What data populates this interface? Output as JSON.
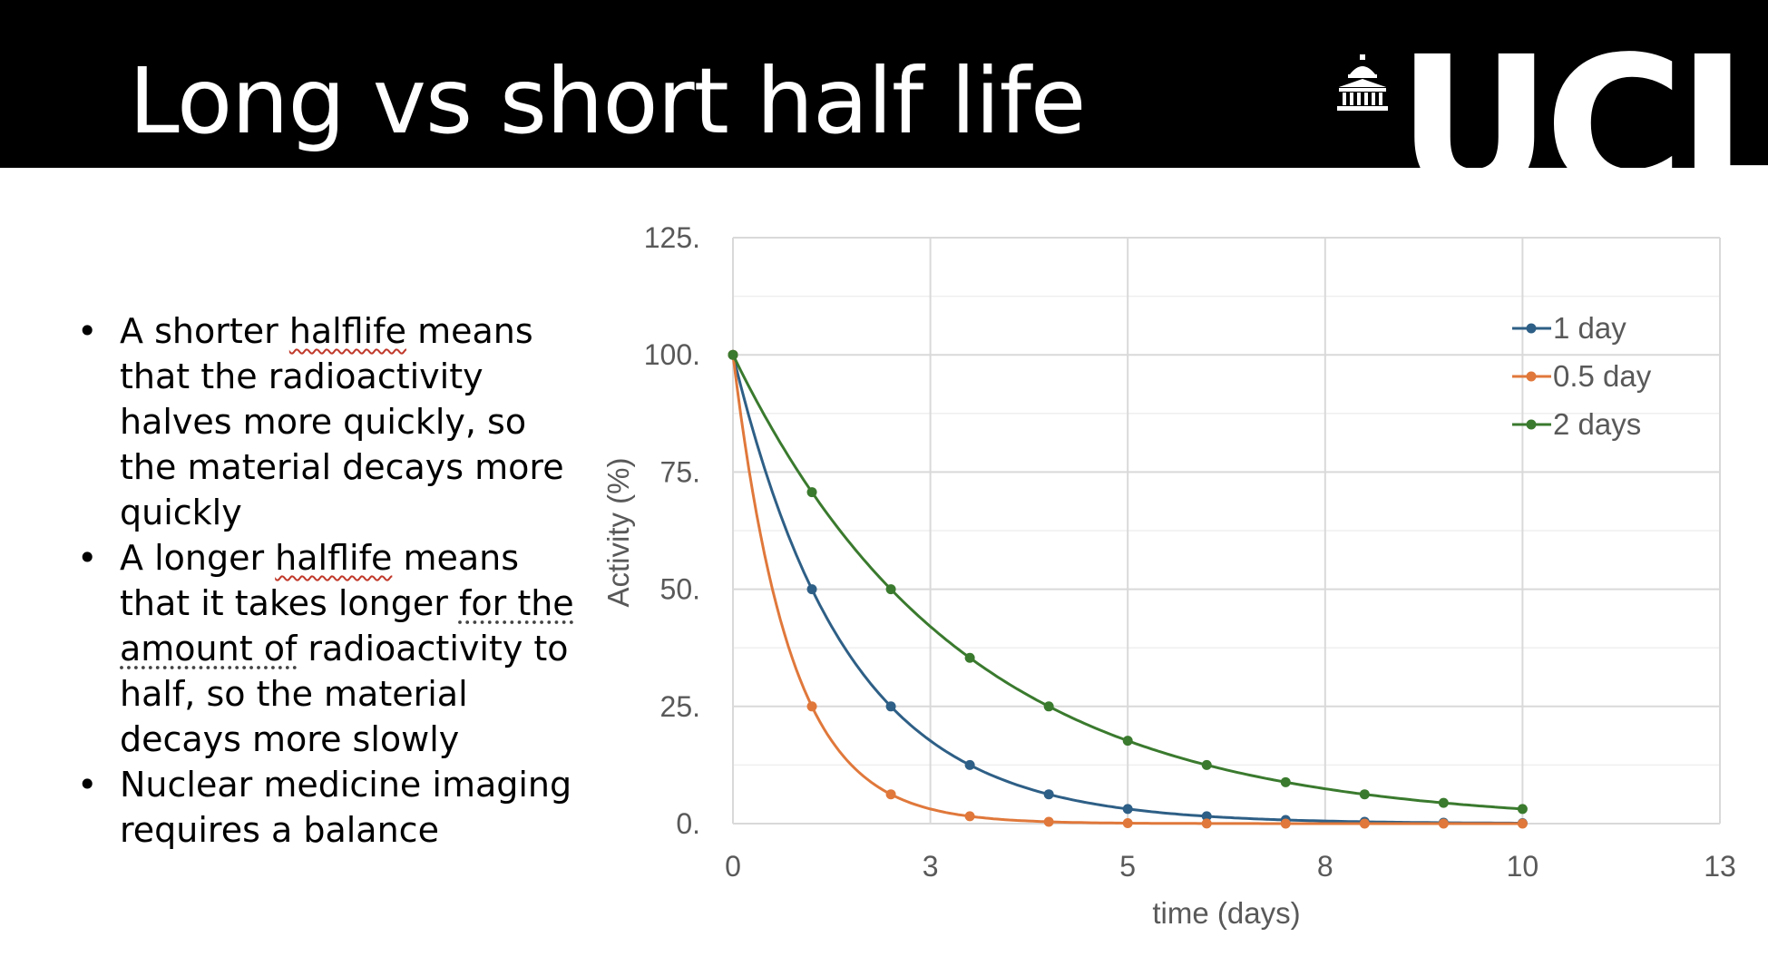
{
  "slide": {
    "title": "Long vs short half life",
    "logo_text": "UCL",
    "logo_icon": "portico-building-icon"
  },
  "bullets": [
    {
      "parts": [
        {
          "t": "A shorter "
        },
        {
          "t": "halflife",
          "squig": true
        },
        {
          "t": " means that the radioactivity halves more quickly, so the material decays more quickly"
        }
      ]
    },
    {
      "parts": [
        {
          "t": "A longer "
        },
        {
          "t": "halflife",
          "squig": true
        },
        {
          "t": " means that it takes longer "
        },
        {
          "t": "for the amount of",
          "dotted": true
        },
        {
          "t": " radioactivity to half, so the material decays more slowly"
        }
      ]
    },
    {
      "parts": [
        {
          "t": "Nuclear medicine imaging requires a balance"
        }
      ]
    }
  ],
  "chart_data": {
    "type": "line",
    "title": "",
    "xlabel": "time (days)",
    "ylabel": "Activity (%)",
    "xlim": [
      0,
      12.5
    ],
    "ylim": [
      0,
      125
    ],
    "x_ticks": [
      0,
      2.5,
      5,
      7.5,
      10,
      12.5
    ],
    "x_tick_labels": [
      "0",
      "3",
      "5",
      "8",
      "10",
      "13"
    ],
    "y_ticks": [
      0,
      25,
      50,
      75,
      100,
      125
    ],
    "y_tick_labels": [
      "0.",
      "25.",
      "50.",
      "75.",
      "100.",
      "125."
    ],
    "grid": true,
    "legend_position": "top-right",
    "x": [
      0,
      1,
      2,
      3,
      4,
      5,
      6,
      7,
      8,
      9,
      10
    ],
    "series": [
      {
        "name": "1 day",
        "color": "#2e5f86",
        "half_life": 1,
        "values": [
          100,
          50,
          25,
          12.5,
          6.25,
          3.125,
          1.563,
          0.781,
          0.391,
          0.195,
          0.098
        ]
      },
      {
        "name": "0.5 day",
        "color": "#e0783b",
        "half_life": 0.5,
        "values": [
          100,
          25,
          6.25,
          1.563,
          0.391,
          0.098,
          0.024,
          0.006,
          0.002,
          0.0004,
          0.0001
        ]
      },
      {
        "name": "2 days",
        "color": "#3a7a2e",
        "half_life": 2,
        "values": [
          100,
          70.71,
          50,
          35.36,
          25,
          17.68,
          12.5,
          8.84,
          6.25,
          4.42,
          3.125
        ]
      }
    ]
  }
}
